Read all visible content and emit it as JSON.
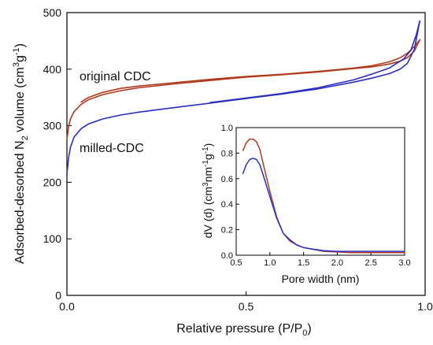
{
  "chart_data": [
    {
      "type": "line",
      "xlabel": "Relative pressure (P/P0)",
      "ylabel": "Adsorbed-desorbed N2 volume (cm3g-1)",
      "xlim": [
        0.0,
        1.0
      ],
      "ylim": [
        0,
        500
      ],
      "xticks": [
        "0.0",
        "0.5",
        "1.0"
      ],
      "yticks": [
        "0",
        "100",
        "200",
        "300",
        "400",
        "500"
      ],
      "annotations": [
        "original CDC",
        "milled-CDC"
      ],
      "series": [
        {
          "label": "original CDC",
          "color": "#b03a1e",
          "adsorption": {
            "x": [
              0.0,
              0.005,
              0.01,
              0.02,
              0.04,
              0.06,
              0.1,
              0.15,
              0.2,
              0.3,
              0.4,
              0.5,
              0.6,
              0.7,
              0.8,
              0.85,
              0.9,
              0.93,
              0.95,
              0.97,
              0.985
            ],
            "y": [
              275,
              300,
              312,
              325,
              338,
              346,
              355,
              362,
              367,
              374,
              380,
              386,
              390,
              395,
              401,
              404,
              409,
              414,
              420,
              432,
              452
            ]
          },
          "desorption": {
            "x": [
              0.985,
              0.97,
              0.95,
              0.93,
              0.9,
              0.85,
              0.8,
              0.7,
              0.6,
              0.5,
              0.4,
              0.3,
              0.2,
              0.15,
              0.1,
              0.06,
              0.04
            ],
            "y": [
              452,
              440,
              428,
              420,
              413,
              406,
              402,
              396,
              391,
              387,
              382,
              376,
              370,
              366,
              359,
              350,
              342
            ]
          }
        },
        {
          "label": "milled-CDC",
          "color": "#2a2fc4",
          "adsorption": {
            "x": [
              0.0,
              0.005,
              0.01,
              0.02,
              0.04,
              0.06,
              0.1,
              0.15,
              0.2,
              0.3,
              0.4,
              0.5,
              0.6,
              0.7,
              0.8,
              0.85,
              0.9,
              0.93,
              0.95,
              0.97,
              0.985
            ],
            "y": [
              215,
              245,
              262,
              280,
              295,
              303,
              312,
              319,
              324,
              332,
              340,
              348,
              356,
              365,
              377,
              384,
              392,
              400,
              410,
              435,
              485
            ]
          },
          "desorption": {
            "x": [
              0.985,
              0.975,
              0.96,
              0.94,
              0.92,
              0.9,
              0.85,
              0.8,
              0.7,
              0.6,
              0.5,
              0.4
            ],
            "y": [
              485,
              460,
              433,
              418,
              410,
              402,
              391,
              381,
              367,
              357,
              349,
              341
            ]
          }
        }
      ]
    },
    {
      "type": "line",
      "xlabel": "Pore width (nm)",
      "ylabel": "dV (d) (cm3nm-1g-1)",
      "xlim": [
        0.5,
        3.0
      ],
      "ylim": [
        0.0,
        1.0
      ],
      "xticks": [
        "0.5",
        "1.0",
        "1.5",
        "2.0",
        "2.5",
        "3.0"
      ],
      "yticks": [
        "0.0",
        "0.2",
        "0.4",
        "0.6",
        "0.8",
        "1.0"
      ],
      "series": [
        {
          "label": "original CDC",
          "color": "#b03a1e",
          "x": [
            0.6,
            0.65,
            0.7,
            0.75,
            0.8,
            0.85,
            0.9,
            1.0,
            1.1,
            1.2,
            1.3,
            1.4,
            1.5,
            1.6,
            1.8,
            2.0,
            2.2,
            2.4,
            2.6,
            2.8,
            3.0
          ],
          "y": [
            0.82,
            0.88,
            0.91,
            0.91,
            0.89,
            0.83,
            0.72,
            0.5,
            0.3,
            0.17,
            0.11,
            0.08,
            0.06,
            0.05,
            0.03,
            0.025,
            0.02,
            0.02,
            0.02,
            0.02,
            0.02
          ]
        },
        {
          "label": "milled-CDC",
          "color": "#2a2fc4",
          "x": [
            0.6,
            0.65,
            0.7,
            0.75,
            0.8,
            0.85,
            0.9,
            1.0,
            1.1,
            1.2,
            1.3,
            1.4,
            1.5,
            1.6,
            1.8,
            2.0,
            2.2,
            2.4,
            2.6,
            2.8,
            3.0
          ],
          "y": [
            0.64,
            0.71,
            0.75,
            0.76,
            0.75,
            0.71,
            0.63,
            0.46,
            0.29,
            0.17,
            0.12,
            0.08,
            0.06,
            0.05,
            0.035,
            0.03,
            0.03,
            0.03,
            0.03,
            0.03,
            0.03
          ]
        }
      ]
    }
  ]
}
